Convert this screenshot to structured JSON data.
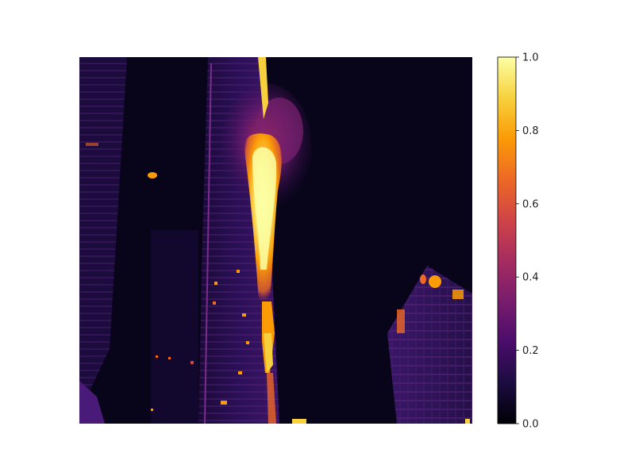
{
  "colorbar": {
    "colormap": "inferno",
    "range": [
      0.0,
      1.0
    ],
    "ticks": [
      "0.0",
      "0.2",
      "0.4",
      "0.6",
      "0.8",
      "1.0"
    ],
    "stops": [
      "#000004",
      "#1b0c41",
      "#4a0c6b",
      "#781c6d",
      "#a52c60",
      "#cf4446",
      "#ed6925",
      "#fb9b06",
      "#f7d13d",
      "#fcffa4"
    ]
  },
  "image": {
    "subject": "skyscraper fire at night rendered as a heat map",
    "background_color": "#08051a",
    "elements": [
      "left-tower",
      "burning-tower",
      "fire-plume",
      "right-building",
      "window-lights"
    ]
  }
}
